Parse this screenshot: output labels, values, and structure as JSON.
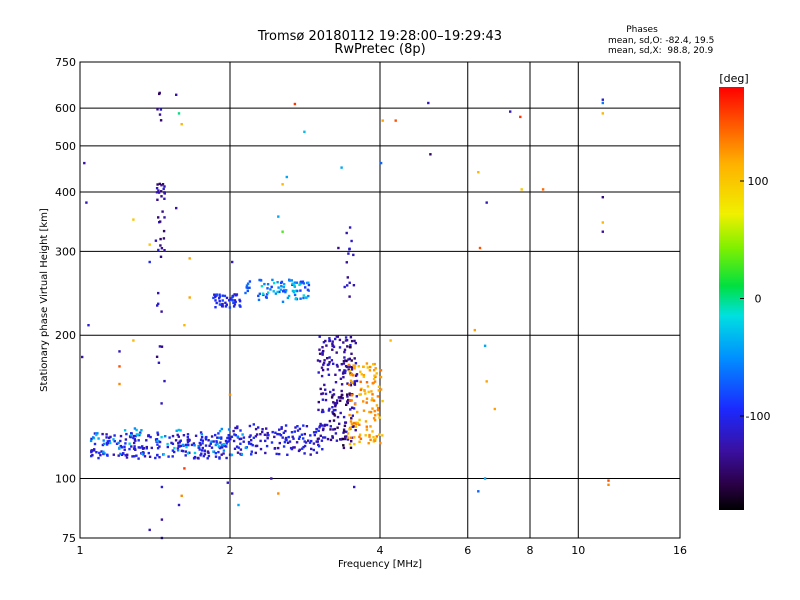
{
  "chart_data": {
    "type": "scatter",
    "title": "Tromsø 20180112 19:28:00–19:29:43",
    "subtitle": "RwPretec (8p)",
    "xlabel": "Frequency [MHz]",
    "ylabel": "Stationary phase Virtual Height [km]",
    "x_scale": "log",
    "y_scale": "log",
    "xlim": [
      1,
      16
    ],
    "ylim": [
      75,
      750
    ],
    "x_ticks": [
      1,
      2,
      4,
      6,
      8,
      10,
      16
    ],
    "y_ticks": [
      75,
      100,
      200,
      300,
      400,
      500,
      600,
      750
    ],
    "grid": true,
    "phase_stats": {
      "heading": "Phases",
      "line_o": "mean, sd,O: -82.4, 19.5",
      "line_x": "mean, sd,X:  98.8, 20.9"
    },
    "colorbar": {
      "label": "[deg]",
      "range": [
        -180,
        180
      ],
      "ticks": [
        100,
        0,
        -100
      ]
    },
    "clusters": [
      {
        "x": [
          1.05,
          2.0
        ],
        "y": [
          110,
          125
        ],
        "phase": -110,
        "n": 220
      },
      {
        "x": [
          2.0,
          3.1
        ],
        "y": [
          112,
          130
        ],
        "phase": -110,
        "n": 140
      },
      {
        "x": [
          1.05,
          2.2
        ],
        "y": [
          112,
          128
        ],
        "phase": -40,
        "n": 60
      },
      {
        "x": [
          3.0,
          3.6
        ],
        "y": [
          120,
          200
        ],
        "phase": -125,
        "n": 180
      },
      {
        "x": [
          3.2,
          3.55
        ],
        "y": [
          115,
          190
        ],
        "phase": -150,
        "n": 40
      },
      {
        "x": [
          3.45,
          4.05
        ],
        "y": [
          118,
          175
        ],
        "phase": 120,
        "n": 120
      },
      {
        "x": [
          1.85,
          2.1
        ],
        "y": [
          228,
          244
        ],
        "phase": -100,
        "n": 45
      },
      {
        "x": [
          2.1,
          2.9
        ],
        "y": [
          235,
          262
        ],
        "phase": -70,
        "n": 60
      },
      {
        "x": [
          2.3,
          2.9
        ],
        "y": [
          238,
          260
        ],
        "phase": -30,
        "n": 25
      },
      {
        "x": [
          1.42,
          1.48
        ],
        "y": [
          290,
          420
        ],
        "phase": -130,
        "n": 30
      },
      {
        "x": [
          1.42,
          1.48
        ],
        "y": [
          140,
          250
        ],
        "phase": -130,
        "n": 10
      },
      {
        "x": [
          3.35,
          3.55
        ],
        "y": [
          240,
          340
        ],
        "phase": -120,
        "n": 14
      },
      {
        "x": [
          1.43,
          1.47
        ],
        "y": [
          560,
          650
        ],
        "phase": -130,
        "n": 6
      }
    ],
    "points": [
      {
        "x": 1.02,
        "y": 460,
        "phase": -130
      },
      {
        "x": 1.03,
        "y": 380,
        "phase": -120
      },
      {
        "x": 1.04,
        "y": 210,
        "phase": -110
      },
      {
        "x": 1.01,
        "y": 180,
        "phase": -130
      },
      {
        "x": 1.2,
        "y": 185,
        "phase": -120
      },
      {
        "x": 1.2,
        "y": 158,
        "phase": 130
      },
      {
        "x": 1.2,
        "y": 172,
        "phase": 150
      },
      {
        "x": 1.28,
        "y": 195,
        "phase": 110
      },
      {
        "x": 1.28,
        "y": 350,
        "phase": 100
      },
      {
        "x": 1.38,
        "y": 310,
        "phase": 100
      },
      {
        "x": 1.38,
        "y": 285,
        "phase": -100
      },
      {
        "x": 1.38,
        "y": 78,
        "phase": -120
      },
      {
        "x": 1.46,
        "y": 75,
        "phase": -120
      },
      {
        "x": 1.46,
        "y": 82,
        "phase": -130
      },
      {
        "x": 1.46,
        "y": 96,
        "phase": -110
      },
      {
        "x": 1.58,
        "y": 88,
        "phase": -120
      },
      {
        "x": 1.6,
        "y": 92,
        "phase": 130
      },
      {
        "x": 1.62,
        "y": 105,
        "phase": 160
      },
      {
        "x": 1.56,
        "y": 640,
        "phase": -130
      },
      {
        "x": 1.58,
        "y": 585,
        "phase": 0
      },
      {
        "x": 1.6,
        "y": 555,
        "phase": 110
      },
      {
        "x": 1.66,
        "y": 240,
        "phase": 120
      },
      {
        "x": 1.66,
        "y": 290,
        "phase": 120
      },
      {
        "x": 1.62,
        "y": 210,
        "phase": 110
      },
      {
        "x": 1.56,
        "y": 370,
        "phase": -130
      },
      {
        "x": 2.02,
        "y": 285,
        "phase": -120
      },
      {
        "x": 2.0,
        "y": 150,
        "phase": 130
      },
      {
        "x": 1.98,
        "y": 98,
        "phase": -120
      },
      {
        "x": 2.02,
        "y": 93,
        "phase": -120
      },
      {
        "x": 2.08,
        "y": 88,
        "phase": -40
      },
      {
        "x": 2.42,
        "y": 100,
        "phase": -130
      },
      {
        "x": 2.5,
        "y": 93,
        "phase": 130
      },
      {
        "x": 2.5,
        "y": 355,
        "phase": -40
      },
      {
        "x": 2.55,
        "y": 330,
        "phase": 30
      },
      {
        "x": 2.6,
        "y": 430,
        "phase": -40
      },
      {
        "x": 2.55,
        "y": 415,
        "phase": 110
      },
      {
        "x": 2.82,
        "y": 535,
        "phase": -30
      },
      {
        "x": 2.7,
        "y": 612,
        "phase": 160
      },
      {
        "x": 3.3,
        "y": 305,
        "phase": -140
      },
      {
        "x": 3.35,
        "y": 450,
        "phase": -40
      },
      {
        "x": 3.55,
        "y": 96,
        "phase": -120
      },
      {
        "x": 4.05,
        "y": 565,
        "phase": 120
      },
      {
        "x": 4.3,
        "y": 565,
        "phase": 150
      },
      {
        "x": 4.02,
        "y": 460,
        "phase": -70
      },
      {
        "x": 4.2,
        "y": 195,
        "phase": 110
      },
      {
        "x": 5.0,
        "y": 615,
        "phase": -120
      },
      {
        "x": 5.05,
        "y": 480,
        "phase": -150
      },
      {
        "x": 6.2,
        "y": 205,
        "phase": 120
      },
      {
        "x": 6.3,
        "y": 440,
        "phase": 110
      },
      {
        "x": 6.35,
        "y": 305,
        "phase": 150
      },
      {
        "x": 6.3,
        "y": 94,
        "phase": -70
      },
      {
        "x": 6.5,
        "y": 100,
        "phase": -40
      },
      {
        "x": 6.5,
        "y": 190,
        "phase": -40
      },
      {
        "x": 6.55,
        "y": 380,
        "phase": -120
      },
      {
        "x": 6.55,
        "y": 160,
        "phase": 120
      },
      {
        "x": 6.8,
        "y": 140,
        "phase": 120
      },
      {
        "x": 7.3,
        "y": 590,
        "phase": -120
      },
      {
        "x": 7.65,
        "y": 575,
        "phase": 160
      },
      {
        "x": 7.7,
        "y": 405,
        "phase": 100
      },
      {
        "x": 8.5,
        "y": 405,
        "phase": 140
      },
      {
        "x": 11.2,
        "y": 625,
        "phase": -110
      },
      {
        "x": 11.2,
        "y": 615,
        "phase": -60
      },
      {
        "x": 11.2,
        "y": 585,
        "phase": 110
      },
      {
        "x": 11.2,
        "y": 390,
        "phase": -140
      },
      {
        "x": 11.2,
        "y": 345,
        "phase": 110
      },
      {
        "x": 11.2,
        "y": 330,
        "phase": -130
      },
      {
        "x": 11.5,
        "y": 99,
        "phase": 150
      },
      {
        "x": 11.5,
        "y": 97,
        "phase": 130
      }
    ]
  }
}
